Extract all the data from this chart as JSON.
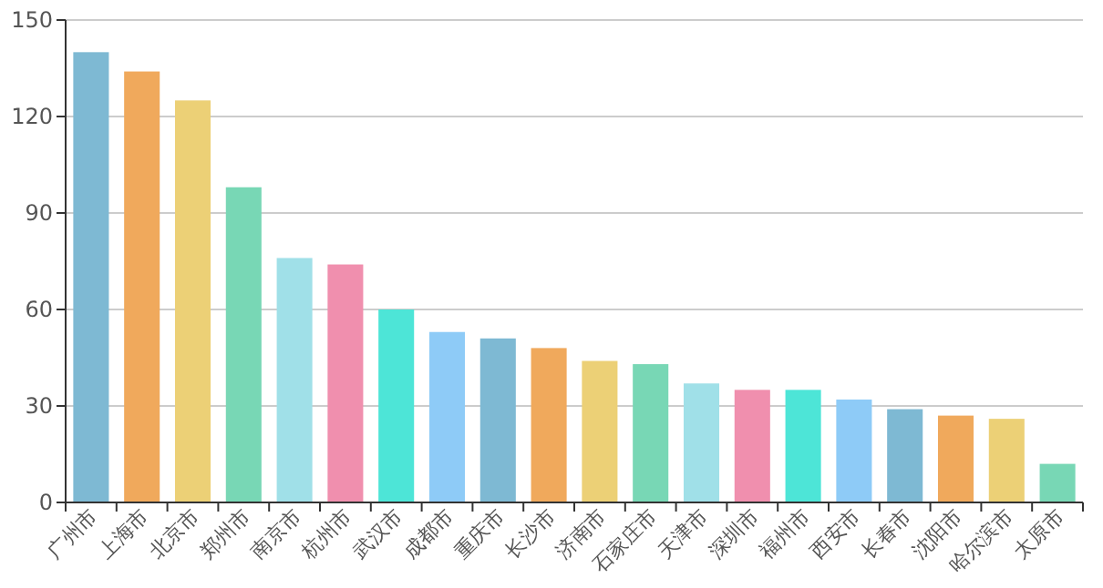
{
  "chart_data": {
    "type": "bar",
    "categories": [
      "广州市",
      "上海市",
      "北京市",
      "郑州市",
      "南京市",
      "杭州市",
      "武汉市",
      "成都市",
      "重庆市",
      "长沙市",
      "济南市",
      "石家庄市",
      "天津市",
      "深圳市",
      "福州市",
      "西安市",
      "长春市",
      "沈阳市",
      "哈尔滨市",
      "太原市"
    ],
    "values": [
      140,
      134,
      125,
      98,
      76,
      74,
      60,
      53,
      51,
      48,
      44,
      43,
      37,
      35,
      35,
      32,
      29,
      27,
      26,
      12
    ],
    "colors": [
      "#7eb9d3",
      "#f0a95c",
      "#ecd076",
      "#78d7b5",
      "#a0e0e8",
      "#f08fae",
      "#4de5d7",
      "#8ecbf7",
      "#7eb9d3",
      "#f0a95c",
      "#ecd076",
      "#78d7b5",
      "#a0e0e8",
      "#f08fae",
      "#4de5d7",
      "#8ecbf7",
      "#7eb9d3",
      "#f0a95c",
      "#ecd076",
      "#78d7b5"
    ],
    "ylim": [
      0,
      150
    ],
    "yticks": [
      0,
      30,
      60,
      90,
      120,
      150
    ],
    "grid": "y"
  }
}
